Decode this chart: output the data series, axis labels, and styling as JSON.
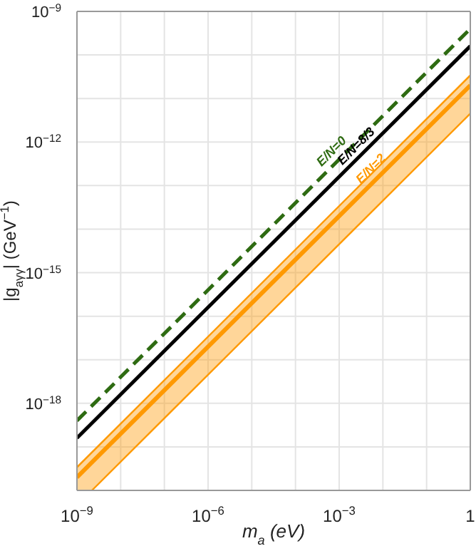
{
  "chart_data": {
    "type": "line",
    "xlabel": "m$_{a}$ (eV)",
    "ylabel": "|g$_{aγγ}$| (GeV$^{−1}$)",
    "log": "xy",
    "xlim": [
      1e-09,
      1
    ],
    "ylim": [
      1e-20,
      1e-09
    ],
    "xticks": [
      {
        "value": 1e-09,
        "label": "10$^{−9}$"
      },
      {
        "value": 1e-08,
        "label": null
      },
      {
        "value": 1e-07,
        "label": null
      },
      {
        "value": 1e-06,
        "label": "10$^{−6}$"
      },
      {
        "value": 1e-05,
        "label": null
      },
      {
        "value": 0.0001,
        "label": null
      },
      {
        "value": 0.001,
        "label": "10$^{−3}$"
      },
      {
        "value": 0.01,
        "label": null
      },
      {
        "value": 0.1,
        "label": null
      },
      {
        "value": 1,
        "label": "1"
      }
    ],
    "yticks": [
      {
        "value": 1e-20,
        "label": null
      },
      {
        "value": 1e-19,
        "label": null
      },
      {
        "value": 1e-18,
        "label": "10$^{−18}$"
      },
      {
        "value": 1e-17,
        "label": null
      },
      {
        "value": 1e-16,
        "label": null
      },
      {
        "value": 1e-15,
        "label": "10$^{−15}$"
      },
      {
        "value": 1e-14,
        "label": null
      },
      {
        "value": 1e-13,
        "label": null
      },
      {
        "value": 1e-12,
        "label": "10$^{−12}$"
      },
      {
        "value": 1e-11,
        "label": null
      },
      {
        "value": 1e-10,
        "label": null
      },
      {
        "value": 1e-09,
        "label": "10$^{−9}$"
      }
    ],
    "grid": true,
    "series": [
      {
        "name": "E/N=0",
        "color": "#2e6b12",
        "line_style": "dashed",
        "x": [
          1e-09,
          1
        ],
        "values": [
          4e-19,
          4e-10
        ]
      },
      {
        "name": "E/N=8/3",
        "color": "#000000",
        "line_style": "solid",
        "x": [
          1e-09,
          1
        ],
        "values": [
          1.6e-19,
          1.6e-10
        ]
      },
      {
        "name": "E/N=2",
        "color": "#ff9900",
        "line_style": "solid",
        "x": [
          1e-09,
          2.2e-09,
          1
        ],
        "values": [
          2e-20,
          4.4e-20,
          2e-11
        ],
        "lower": [
          1e-20,
          1e-20,
          4.5e-12
        ],
        "upper": [
          3.4e-20,
          7.5e-20,
          3.4e-11
        ]
      },
      {
        "color": "#ff9900",
        "line_style": "solid",
        "x": [
          1e-09,
          1
        ],
        "values": [
          3.4e-20,
          3.4e-11
        ]
      },
      {
        "color": "#ff9900",
        "line_style": "solid",
        "x": [
          2.2e-09,
          1
        ],
        "values": [
          1e-20,
          4.5e-12
        ]
      }
    ]
  }
}
